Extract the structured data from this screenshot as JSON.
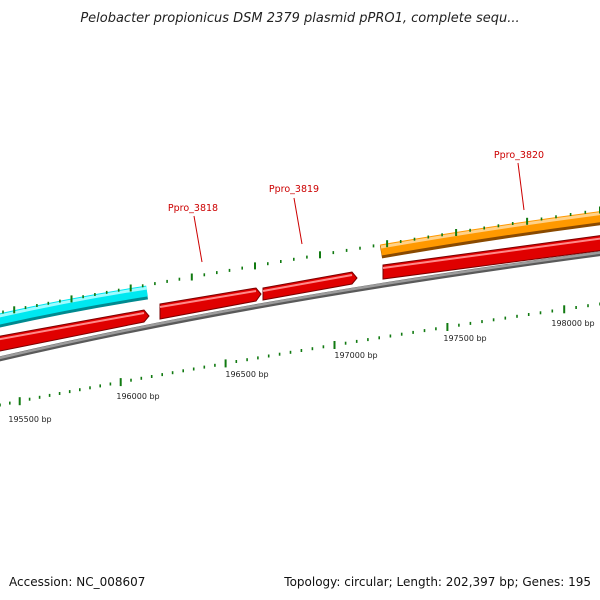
{
  "title": "Pelobacter propionicus DSM 2379 plasmid pPRO1, complete sequ...",
  "footer": {
    "accession": "Accession: NC_008607",
    "summary": "Topology: circular; Length: 202,397 bp; Genes: 195"
  },
  "scale_labels": [
    "195500 bp",
    "196000 bp",
    "196500 bp",
    "197000 bp",
    "197500 bp",
    "198000 bp"
  ],
  "gene_labels": [
    "Ppro_3818",
    "Ppro_3819",
    "Ppro_3820"
  ],
  "colors": {
    "backbone": "#888888",
    "cds": "#ff0000",
    "cyan_feature": "#00e8f0",
    "orange_feature": "#ff9900",
    "tick": "#117a11",
    "label": "#cc0000"
  }
}
